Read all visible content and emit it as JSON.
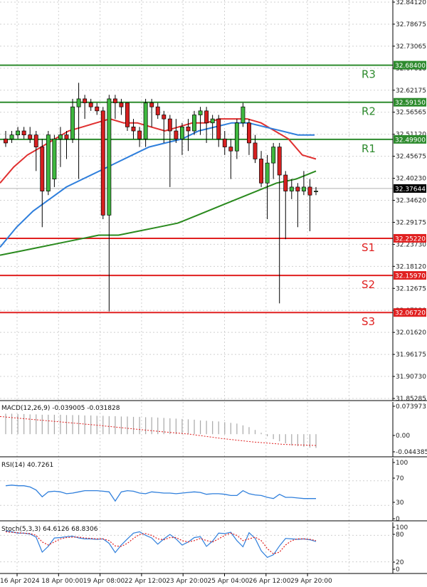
{
  "chart_data": {
    "type": "candlestick",
    "instrument_price": "32.37644",
    "price_axis": {
      "ylim": [
        31.85285,
        32.8412
      ],
      "ticks": [
        "32.84120",
        "32.78675",
        "32.73065",
        "32.67610",
        "32.62175",
        "32.56565",
        "32.51120",
        "32.45675",
        "32.40230",
        "32.34620",
        "32.29175",
        "32.23730",
        "32.18120",
        "32.12675",
        "32.07230",
        "32.01620",
        "31.96175",
        "31.90730",
        "31.85285"
      ]
    },
    "levels": [
      {
        "name": "R3",
        "value": 32.684,
        "label": "32.68400",
        "color": "#2e8b2e"
      },
      {
        "name": "R2",
        "value": 32.5915,
        "label": "32.59150",
        "color": "#2e8b2e"
      },
      {
        "name": "R1",
        "value": 32.499,
        "label": "32.49900",
        "color": "#2e8b2e"
      },
      {
        "name": "S1",
        "value": 32.2522,
        "label": "32.25220",
        "color": "#e02020"
      },
      {
        "name": "S2",
        "value": 32.1597,
        "label": "32.15970",
        "color": "#e02020"
      },
      {
        "name": "S3",
        "value": 32.0672,
        "label": "32.06720",
        "color": "#e02020"
      }
    ],
    "time_labels": [
      "16 Apr 2024",
      "18 Apr 00:00",
      "19 Apr 08:00",
      "22 Apr 12:00",
      "23 Apr 20:00",
      "25 Apr 04:00",
      "26 Apr 12:00",
      "29 Apr 20:00"
    ],
    "candles": [
      [
        32.5,
        32.52,
        32.48,
        32.49
      ],
      [
        32.5,
        32.52,
        32.49,
        32.51
      ],
      [
        32.51,
        32.53,
        32.5,
        32.52
      ],
      [
        32.52,
        32.53,
        32.5,
        32.51
      ],
      [
        32.51,
        32.53,
        32.49,
        32.5
      ],
      [
        32.51,
        32.52,
        32.42,
        32.48
      ],
      [
        32.48,
        32.5,
        32.28,
        32.37
      ],
      [
        32.37,
        32.52,
        32.36,
        32.51
      ],
      [
        32.4,
        32.51,
        32.38,
        32.5
      ],
      [
        32.5,
        32.53,
        32.43,
        32.51
      ],
      [
        32.51,
        32.52,
        32.45,
        32.5
      ],
      [
        32.5,
        32.6,
        32.49,
        32.58
      ],
      [
        32.58,
        32.64,
        32.4,
        32.6
      ],
      [
        32.6,
        32.61,
        32.55,
        32.59
      ],
      [
        32.59,
        32.6,
        32.57,
        32.58
      ],
      [
        32.58,
        32.59,
        32.56,
        32.57
      ],
      [
        32.57,
        32.58,
        32.3,
        32.31
      ],
      [
        32.31,
        32.61,
        32.07,
        32.6
      ],
      [
        32.6,
        32.61,
        32.55,
        32.59
      ],
      [
        32.59,
        32.6,
        32.56,
        32.58
      ],
      [
        32.59,
        32.59,
        32.52,
        32.53
      ],
      [
        32.53,
        32.55,
        32.5,
        32.52
      ],
      [
        32.52,
        32.53,
        32.48,
        32.5
      ],
      [
        32.5,
        32.6,
        32.48,
        32.59
      ],
      [
        32.59,
        32.6,
        32.53,
        32.58
      ],
      [
        32.58,
        32.59,
        32.55,
        32.56
      ],
      [
        32.56,
        32.57,
        32.49,
        32.55
      ],
      [
        32.55,
        32.56,
        32.38,
        32.52
      ],
      [
        32.52,
        32.55,
        32.49,
        32.5
      ],
      [
        32.5,
        32.54,
        32.46,
        32.53
      ],
      [
        32.53,
        32.55,
        32.47,
        32.52
      ],
      [
        32.52,
        32.57,
        32.51,
        32.56
      ],
      [
        32.56,
        32.58,
        32.51,
        32.57
      ],
      [
        32.57,
        32.58,
        32.49,
        32.54
      ],
      [
        32.54,
        32.56,
        32.5,
        32.55
      ],
      [
        32.55,
        32.56,
        32.48,
        32.5
      ],
      [
        32.5,
        32.52,
        32.46,
        32.48
      ],
      [
        32.48,
        32.5,
        32.4,
        32.47
      ],
      [
        32.47,
        32.55,
        32.45,
        32.54
      ],
      [
        32.54,
        32.59,
        32.53,
        32.58
      ],
      [
        32.54,
        32.55,
        32.46,
        32.49
      ],
      [
        32.49,
        32.51,
        32.44,
        32.45
      ],
      [
        32.45,
        32.47,
        32.38,
        32.39
      ],
      [
        32.39,
        32.46,
        32.3,
        32.44
      ],
      [
        32.44,
        32.49,
        32.4,
        32.48
      ],
      [
        32.48,
        32.49,
        32.09,
        32.41
      ],
      [
        32.41,
        32.42,
        32.25,
        32.37
      ],
      [
        32.37,
        32.4,
        32.35,
        32.38
      ],
      [
        32.38,
        32.39,
        32.28,
        32.37
      ],
      [
        32.37,
        32.42,
        32.36,
        32.38
      ],
      [
        32.38,
        32.4,
        32.27,
        32.36
      ],
      [
        32.37,
        32.38,
        32.36,
        32.37
      ]
    ],
    "moving_averages": [
      {
        "color": "#e03030",
        "values": [
          32.39,
          32.43,
          32.46,
          32.48,
          32.5,
          32.52,
          32.53,
          32.54,
          32.55,
          32.54,
          32.54,
          32.53,
          32.52,
          32.53,
          32.54,
          32.54,
          32.55,
          32.55,
          32.55,
          32.54,
          32.52,
          32.5,
          32.46,
          32.45
        ]
      },
      {
        "color": "#2f7fdc",
        "values": [
          32.23,
          32.28,
          32.32,
          32.35,
          32.38,
          32.4,
          32.42,
          32.44,
          32.46,
          32.48,
          32.49,
          32.5,
          32.52,
          32.53,
          32.54,
          32.54,
          32.53,
          32.52,
          32.51,
          32.51
        ]
      },
      {
        "color": "#2a8a1e",
        "values": [
          32.21,
          32.22,
          32.23,
          32.24,
          32.25,
          32.26,
          32.26,
          32.27,
          32.28,
          32.29,
          32.31,
          32.33,
          32.35,
          32.37,
          32.39,
          32.4,
          32.42
        ]
      }
    ],
    "macd": {
      "label": "MACD(12,26,9) -0.039005 -0.031828",
      "axis_labels": [
        "0.073973",
        "0.00",
        "-0.044385"
      ],
      "ylim": [
        -0.06,
        0.085
      ],
      "histogram": [
        0.058,
        0.058,
        0.057,
        0.057,
        0.056,
        0.056,
        0.055,
        0.055,
        0.055,
        0.055,
        0.054,
        0.054,
        0.054,
        0.053,
        0.053,
        0.052,
        0.052,
        0.051,
        0.051,
        0.05,
        0.05,
        0.049,
        0.049,
        0.048,
        0.048,
        0.047,
        0.046,
        0.045,
        0.044,
        0.043,
        0.042,
        0.041,
        0.039,
        0.038,
        0.037,
        0.036,
        0.034,
        0.032,
        0.03,
        0.025,
        0.02,
        0.012,
        0.004,
        -0.006,
        -0.014,
        -0.02,
        -0.026,
        -0.032,
        -0.034,
        -0.036,
        -0.038,
        -0.039
      ],
      "signal": [
        0.05,
        0.042,
        0.034,
        0.026,
        0.017,
        0.008,
        0.0,
        -0.012,
        -0.022,
        -0.029,
        -0.032
      ]
    },
    "rsi": {
      "label": "RSI(14) 40.7261",
      "axis_labels": [
        "100",
        "70",
        "30",
        "0"
      ],
      "ylim": [
        0,
        100
      ],
      "values": [
        62,
        63,
        62,
        62,
        60,
        55,
        44,
        52,
        53,
        52,
        49,
        50,
        52,
        54,
        54,
        54,
        53,
        52,
        37,
        52,
        54,
        53,
        50,
        49,
        52,
        51,
        50,
        50,
        49,
        50,
        51,
        52,
        51,
        48,
        49,
        49,
        48,
        46,
        46,
        54,
        49,
        47,
        46,
        43,
        41,
        48,
        43,
        43,
        42,
        41,
        41,
        41
      ]
    },
    "stoch": {
      "label": "Stoch(5,3,3) 64.6126 68.8306",
      "axis_labels": [
        "100",
        "80",
        "20",
        "0"
      ],
      "ylim": [
        0,
        100
      ],
      "k": [
        90,
        88,
        85,
        85,
        83,
        76,
        42,
        55,
        74,
        75,
        77,
        78,
        74,
        72,
        72,
        71,
        72,
        62,
        41,
        58,
        72,
        85,
        88,
        80,
        74,
        60,
        72,
        82,
        72,
        58,
        65,
        75,
        77,
        55,
        67,
        85,
        84,
        87,
        68,
        54,
        86,
        73,
        45,
        30,
        36,
        56,
        73,
        72,
        71,
        72,
        70,
        66
      ],
      "d": [
        88,
        87,
        86,
        85,
        84,
        80,
        65,
        58,
        65,
        72,
        75,
        76,
        76,
        74,
        73,
        72,
        72,
        68,
        56,
        55,
        62,
        73,
        82,
        84,
        80,
        72,
        70,
        75,
        75,
        68,
        65,
        68,
        73,
        68,
        65,
        72,
        80,
        85,
        80,
        68,
        72,
        76,
        68,
        50,
        38,
        42,
        58,
        68,
        72,
        72,
        71,
        68
      ]
    }
  }
}
